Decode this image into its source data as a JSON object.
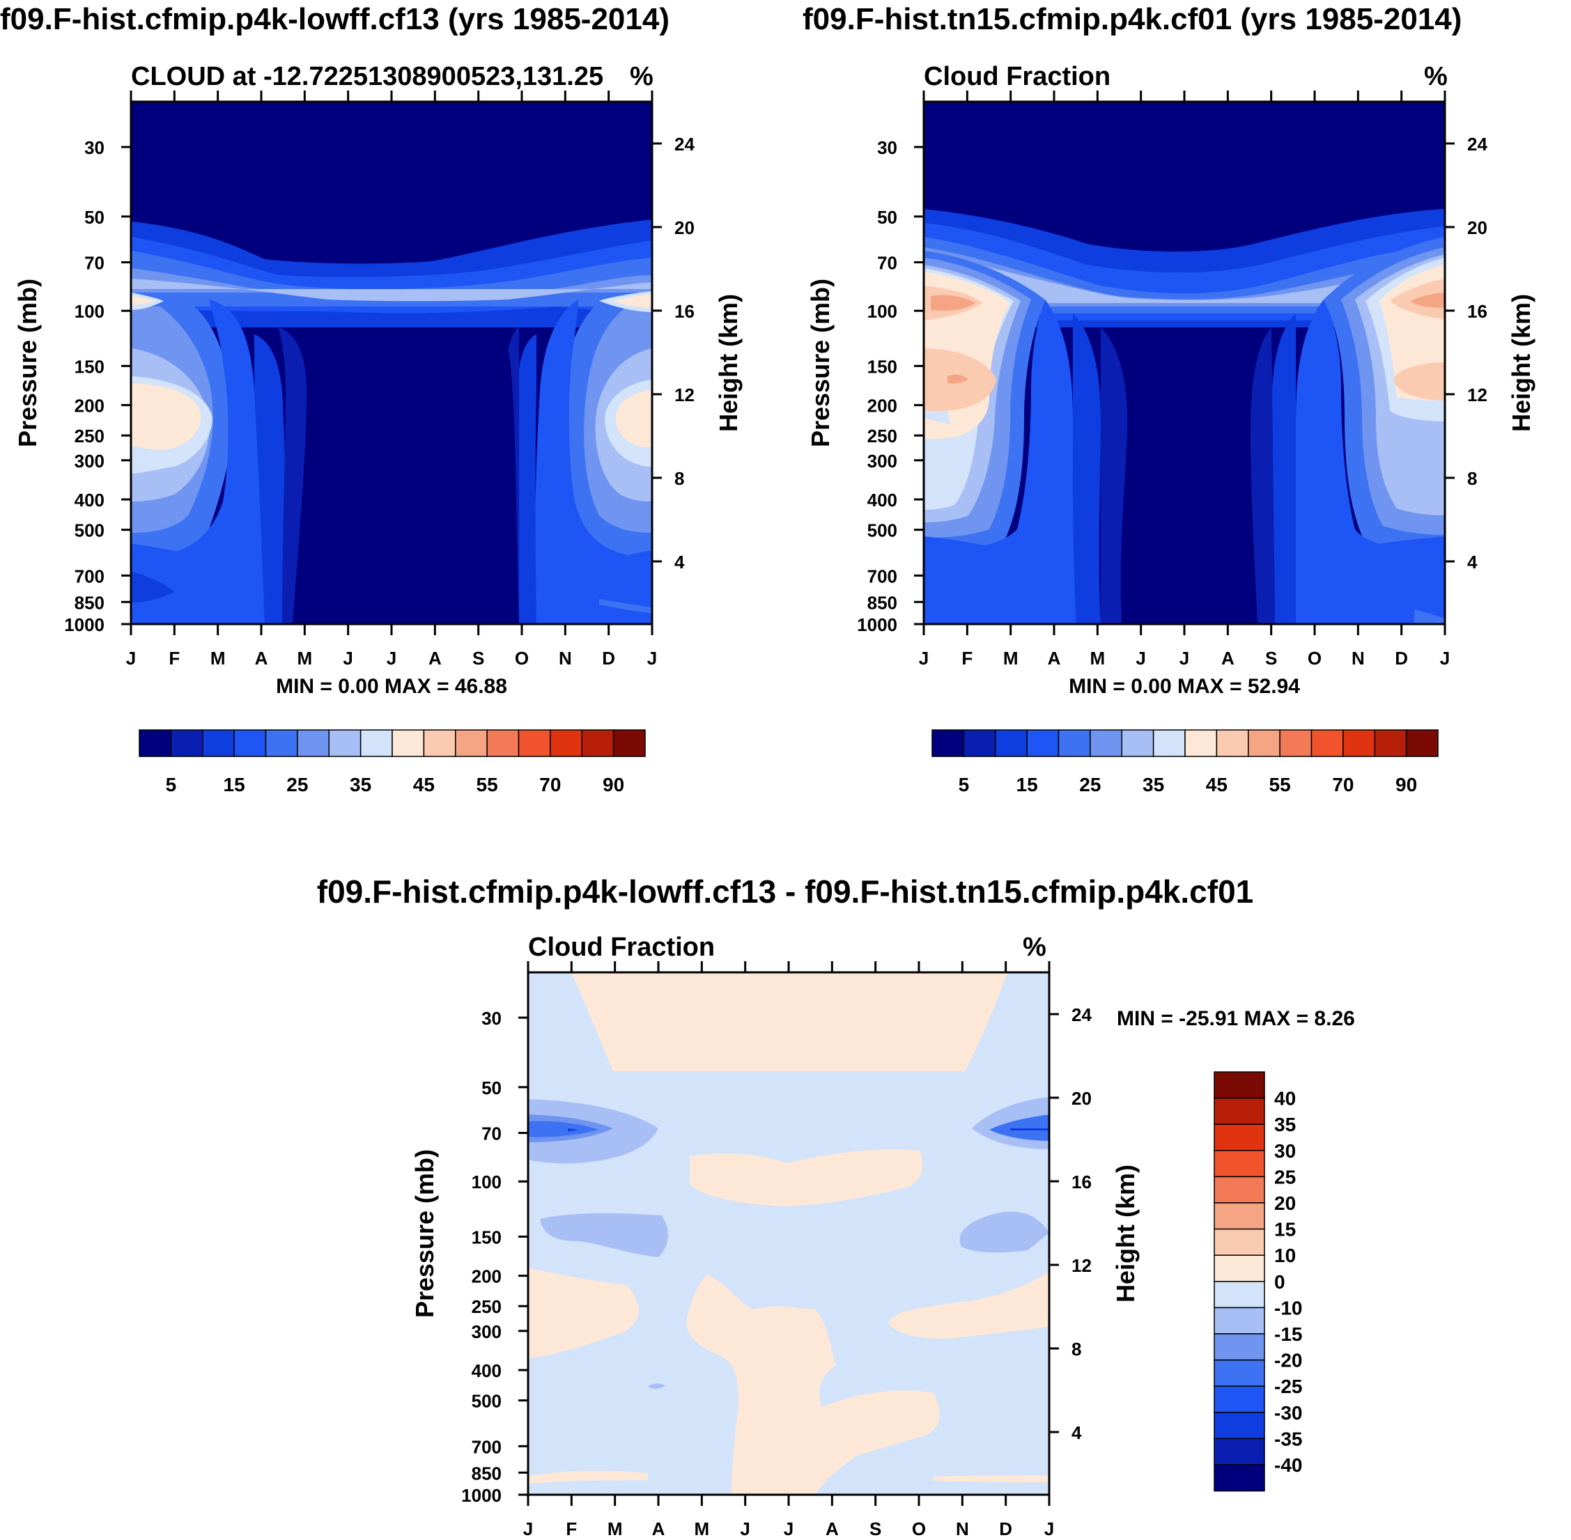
{
  "chart_data": [
    {
      "type": "heatmap",
      "id": "p1",
      "title": "f09.F-hist.cfmip.p4k-lowff.cf13 (yrs 1985-2014)",
      "left_label": "CLOUD at -12.72251308900523,131.25",
      "right_label": "%",
      "ylabel": "Pressure (mb)",
      "y2label": "Height (km)",
      "x_ticks": [
        "J",
        "F",
        "M",
        "A",
        "M",
        "J",
        "J",
        "A",
        "S",
        "O",
        "N",
        "D",
        "J"
      ],
      "p_ticks": [
        30,
        50,
        70,
        100,
        150,
        200,
        250,
        300,
        400,
        500,
        700,
        850,
        1000
      ],
      "h_ticks": [
        24,
        20,
        16,
        12,
        8,
        4
      ],
      "stats": "MIN =   0.00 MAX =  46.88",
      "min": 0.0,
      "max": 46.88,
      "description": "Monthly climatology of cloud fraction vs pressure; low values aloft and during May-October, maxima near 100 mb and 200-300 mb in Dec-Feb"
    },
    {
      "type": "heatmap",
      "id": "p2",
      "title": "f09.F-hist.tn15.cfmip.p4k.cf01 (yrs 1985-2014)",
      "left_label": "Cloud Fraction",
      "right_label": "%",
      "ylabel": "Pressure (mb)",
      "y2label": "Height (km)",
      "x_ticks": [
        "J",
        "F",
        "M",
        "A",
        "M",
        "J",
        "J",
        "A",
        "S",
        "O",
        "N",
        "D",
        "J"
      ],
      "p_ticks": [
        30,
        50,
        70,
        100,
        150,
        200,
        250,
        300,
        400,
        500,
        700,
        850,
        1000
      ],
      "h_ticks": [
        24,
        20,
        16,
        12,
        8,
        4
      ],
      "stats": "MIN =   0.00 MAX =  52.94",
      "min": 0.0,
      "max": 52.94
    },
    {
      "type": "heatmap",
      "id": "p3",
      "title": "f09.F-hist.cfmip.p4k-lowff.cf13 - f09.F-hist.tn15.cfmip.p4k.cf01",
      "left_label": "Cloud Fraction",
      "right_label": "%",
      "ylabel": "Pressure (mb)",
      "y2label": "Height (km)",
      "x_ticks": [
        "J",
        "F",
        "M",
        "A",
        "M",
        "J",
        "J",
        "A",
        "S",
        "O",
        "N",
        "D",
        "J"
      ],
      "p_ticks": [
        30,
        50,
        70,
        100,
        150,
        200,
        250,
        300,
        400,
        500,
        700,
        850,
        1000
      ],
      "h_ticks": [
        24,
        20,
        16,
        12,
        8,
        4
      ],
      "stats": "MIN = -25.91 MAX =   8.26",
      "min": -25.91,
      "max": 8.26
    }
  ],
  "colorbar_abs": {
    "labels": [
      "5",
      "15",
      "25",
      "35",
      "45",
      "55",
      "70",
      "90"
    ],
    "colors": [
      "#00007f",
      "#0a1fb2",
      "#0f3ee0",
      "#1e55f5",
      "#3d73f2",
      "#7095f0",
      "#a8bff5",
      "#d3e3fa",
      "#fde8d8",
      "#fbcbb1",
      "#f6a584",
      "#f37a56",
      "#f1542c",
      "#e0330f",
      "#b81f08",
      "#7b0a04"
    ]
  },
  "colorbar_diff": {
    "labels": [
      "40",
      "35",
      "30",
      "25",
      "20",
      "15",
      "10",
      "0",
      "-10",
      "-15",
      "-20",
      "-25",
      "-30",
      "-35",
      "-40"
    ],
    "colors": [
      "#7b0a04",
      "#b81f08",
      "#e0330f",
      "#f1542c",
      "#f37a56",
      "#f6a584",
      "#fbcbb1",
      "#fde8d8",
      "#d3e3fa",
      "#a8bff5",
      "#7095f0",
      "#3d73f2",
      "#1e55f5",
      "#0f3ee0",
      "#0a1fb2",
      "#00007f"
    ]
  }
}
